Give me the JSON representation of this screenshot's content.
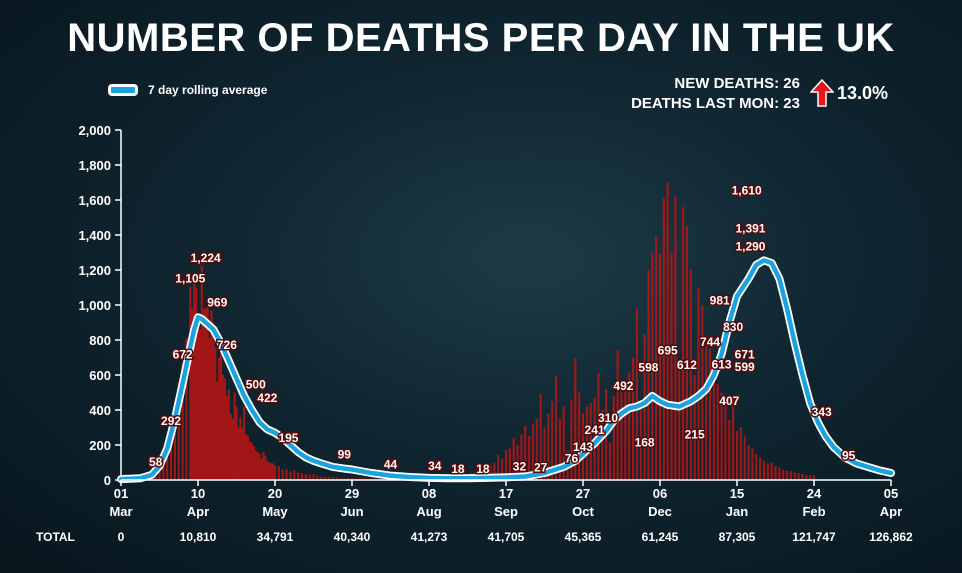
{
  "title": "NUMBER OF DEATHS PER DAY IN THE UK",
  "legend_label": "7 day rolling average",
  "stats": {
    "new_deaths": "NEW DEATHS: 26",
    "deaths_last_mon": "DEATHS LAST MON: 23",
    "change": "13.0%"
  },
  "colors": {
    "bars": "#b31515",
    "line": "#1aa3e0",
    "line_outline": "#ffffff"
  },
  "chart_data": {
    "type": "bar",
    "title": "NUMBER OF DEATHS PER DAY IN THE UK",
    "ylim": [
      0,
      2000
    ],
    "yticks": [
      0,
      200,
      400,
      600,
      800,
      1000,
      1200,
      1400,
      1600,
      1800,
      2000
    ],
    "ytick_labels": [
      "0",
      "200",
      "400",
      "600",
      "800",
      "1,000",
      "1,200",
      "1,400",
      "1,600",
      "1,800",
      "2,000"
    ],
    "x_ticks": [
      {
        "day": 0,
        "date": "01",
        "month": "Mar",
        "total": "0"
      },
      {
        "day": 40,
        "date": "10",
        "month": "Apr",
        "total": "10,810"
      },
      {
        "day": 80,
        "date": "20",
        "month": "May",
        "total": "34,791"
      },
      {
        "day": 120,
        "date": "29",
        "month": "Jun",
        "total": "40,340"
      },
      {
        "day": 160,
        "date": "08",
        "month": "Aug",
        "total": "41,273"
      },
      {
        "day": 200,
        "date": "17",
        "month": "Sep",
        "total": "41,705"
      },
      {
        "day": 240,
        "date": "27",
        "month": "Oct",
        "total": "45,365"
      },
      {
        "day": 280,
        "date": "06",
        "month": "Dec",
        "total": "61,245"
      },
      {
        "day": 320,
        "date": "15",
        "month": "Jan",
        "total": "87,305"
      },
      {
        "day": 360,
        "date": "24",
        "month": "Feb",
        "total": "121,747"
      },
      {
        "day": 400,
        "date": "05",
        "month": "Apr",
        "total": "126,862"
      }
    ],
    "total_label": "TOTAL",
    "rolling_average": {
      "name": "7 day rolling average",
      "points": [
        [
          0,
          5
        ],
        [
          10,
          10
        ],
        [
          16,
          30
        ],
        [
          20,
          80
        ],
        [
          24,
          180
        ],
        [
          28,
          350
        ],
        [
          32,
          550
        ],
        [
          36,
          760
        ],
        [
          38,
          860
        ],
        [
          40,
          930
        ],
        [
          42,
          920
        ],
        [
          44,
          900
        ],
        [
          48,
          860
        ],
        [
          52,
          780
        ],
        [
          56,
          680
        ],
        [
          60,
          580
        ],
        [
          64,
          480
        ],
        [
          68,
          400
        ],
        [
          72,
          330
        ],
        [
          76,
          290
        ],
        [
          80,
          270
        ],
        [
          84,
          240
        ],
        [
          88,
          200
        ],
        [
          92,
          160
        ],
        [
          96,
          130
        ],
        [
          100,
          110
        ],
        [
          104,
          95
        ],
        [
          110,
          75
        ],
        [
          116,
          65
        ],
        [
          120,
          60
        ],
        [
          130,
          40
        ],
        [
          140,
          25
        ],
        [
          150,
          17
        ],
        [
          160,
          12
        ],
        [
          170,
          10
        ],
        [
          180,
          10
        ],
        [
          190,
          12
        ],
        [
          200,
          15
        ],
        [
          210,
          20
        ],
        [
          220,
          40
        ],
        [
          230,
          75
        ],
        [
          236,
          110
        ],
        [
          240,
          150
        ],
        [
          246,
          210
        ],
        [
          252,
          280
        ],
        [
          256,
          340
        ],
        [
          260,
          380
        ],
        [
          264,
          410
        ],
        [
          268,
          420
        ],
        [
          272,
          440
        ],
        [
          276,
          480
        ],
        [
          280,
          450
        ],
        [
          284,
          430
        ],
        [
          290,
          420
        ],
        [
          296,
          450
        ],
        [
          300,
          480
        ],
        [
          304,
          520
        ],
        [
          308,
          600
        ],
        [
          312,
          720
        ],
        [
          316,
          900
        ],
        [
          320,
          1050
        ],
        [
          326,
          1150
        ],
        [
          330,
          1230
        ],
        [
          334,
          1255
        ],
        [
          338,
          1240
        ],
        [
          342,
          1150
        ],
        [
          346,
          980
        ],
        [
          350,
          780
        ],
        [
          354,
          600
        ],
        [
          358,
          440
        ],
        [
          362,
          330
        ],
        [
          366,
          250
        ],
        [
          370,
          190
        ],
        [
          376,
          130
        ],
        [
          382,
          95
        ],
        [
          388,
          75
        ],
        [
          394,
          55
        ],
        [
          400,
          40
        ]
      ]
    },
    "daily_deaths": [
      [
        0,
        1
      ],
      [
        2,
        1
      ],
      [
        4,
        2
      ],
      [
        6,
        3
      ],
      [
        8,
        4
      ],
      [
        10,
        6
      ],
      [
        12,
        10
      ],
      [
        14,
        16
      ],
      [
        16,
        25
      ],
      [
        18,
        58
      ],
      [
        20,
        65
      ],
      [
        22,
        100
      ],
      [
        24,
        180
      ],
      [
        26,
        292
      ],
      [
        28,
        450
      ],
      [
        30,
        560
      ],
      [
        32,
        672
      ],
      [
        34,
        810
      ],
      [
        36,
        1105
      ],
      [
        37,
        980
      ],
      [
        38,
        1150
      ],
      [
        39,
        1100
      ],
      [
        40,
        880
      ],
      [
        41,
        860
      ],
      [
        42,
        1224
      ],
      [
        43,
        980
      ],
      [
        44,
        980
      ],
      [
        45,
        1040
      ],
      [
        46,
        810
      ],
      [
        47,
        969
      ],
      [
        48,
        900
      ],
      [
        49,
        760
      ],
      [
        50,
        560
      ],
      [
        51,
        700
      ],
      [
        52,
        726
      ],
      [
        53,
        600
      ],
      [
        54,
        580
      ],
      [
        55,
        480
      ],
      [
        56,
        520
      ],
      [
        57,
        380
      ],
      [
        58,
        350
      ],
      [
        59,
        500
      ],
      [
        60,
        420
      ],
      [
        61,
        300
      ],
      [
        62,
        360
      ],
      [
        63,
        300
      ],
      [
        64,
        422
      ],
      [
        65,
        260
      ],
      [
        66,
        250
      ],
      [
        67,
        220
      ],
      [
        68,
        210
      ],
      [
        69,
        195
      ],
      [
        70,
        170
      ],
      [
        71,
        160
      ],
      [
        72,
        150
      ],
      [
        73,
        120
      ],
      [
        74,
        160
      ],
      [
        75,
        140
      ],
      [
        76,
        110
      ],
      [
        77,
        100
      ],
      [
        78,
        99
      ],
      [
        79,
        95
      ],
      [
        80,
        85
      ],
      [
        82,
        80
      ],
      [
        84,
        60
      ],
      [
        86,
        60
      ],
      [
        88,
        50
      ],
      [
        90,
        55
      ],
      [
        92,
        44
      ],
      [
        94,
        40
      ],
      [
        96,
        35
      ],
      [
        98,
        30
      ],
      [
        100,
        34
      ],
      [
        102,
        25
      ],
      [
        104,
        18
      ],
      [
        106,
        18
      ],
      [
        108,
        15
      ],
      [
        110,
        18
      ],
      [
        112,
        14
      ],
      [
        114,
        12
      ],
      [
        116,
        10
      ],
      [
        118,
        12
      ],
      [
        120,
        10
      ],
      [
        122,
        8
      ],
      [
        124,
        10
      ],
      [
        126,
        9
      ],
      [
        128,
        8
      ],
      [
        130,
        7
      ],
      [
        132,
        8
      ],
      [
        134,
        9
      ],
      [
        136,
        10
      ],
      [
        138,
        12
      ],
      [
        140,
        11
      ],
      [
        142,
        12
      ],
      [
        144,
        14
      ],
      [
        146,
        13
      ],
      [
        148,
        15
      ],
      [
        150,
        12
      ],
      [
        152,
        16
      ],
      [
        154,
        14
      ],
      [
        156,
        18
      ],
      [
        158,
        16
      ],
      [
        160,
        15
      ],
      [
        162,
        18
      ],
      [
        164,
        20
      ],
      [
        166,
        22
      ],
      [
        168,
        25
      ],
      [
        170,
        28
      ],
      [
        172,
        30
      ],
      [
        174,
        32
      ],
      [
        176,
        27
      ],
      [
        178,
        35
      ],
      [
        180,
        30
      ],
      [
        182,
        40
      ],
      [
        184,
        45
      ],
      [
        186,
        50
      ],
      [
        188,
        60
      ],
      [
        190,
        76
      ],
      [
        192,
        80
      ],
      [
        194,
        100
      ],
      [
        196,
        143
      ],
      [
        198,
        120
      ],
      [
        200,
        170
      ],
      [
        202,
        180
      ],
      [
        204,
        241
      ],
      [
        206,
        200
      ],
      [
        208,
        260
      ],
      [
        210,
        310
      ],
      [
        212,
        250
      ],
      [
        214,
        320
      ],
      [
        216,
        350
      ],
      [
        218,
        492
      ],
      [
        220,
        300
      ],
      [
        222,
        380
      ],
      [
        224,
        450
      ],
      [
        226,
        598
      ],
      [
        228,
        350
      ],
      [
        230,
        420
      ],
      [
        232,
        168
      ],
      [
        234,
        460
      ],
      [
        236,
        695
      ],
      [
        238,
        500
      ],
      [
        240,
        380
      ],
      [
        242,
        420
      ],
      [
        244,
        440
      ],
      [
        246,
        470
      ],
      [
        248,
        612
      ],
      [
        250,
        400
      ],
      [
        252,
        520
      ],
      [
        254,
        215
      ],
      [
        256,
        480
      ],
      [
        258,
        744
      ],
      [
        260,
        500
      ],
      [
        262,
        560
      ],
      [
        264,
        613
      ],
      [
        266,
        700
      ],
      [
        268,
        981
      ],
      [
        270,
        407
      ],
      [
        272,
        830
      ],
      [
        274,
        1200
      ],
      [
        276,
        1300
      ],
      [
        278,
        1391
      ],
      [
        280,
        1290
      ],
      [
        282,
        1610
      ],
      [
        284,
        1700
      ],
      [
        286,
        1300
      ],
      [
        288,
        1620
      ],
      [
        290,
        671
      ],
      [
        292,
        1560
      ],
      [
        294,
        1450
      ],
      [
        296,
        1200
      ],
      [
        298,
        599
      ],
      [
        300,
        1100
      ],
      [
        302,
        1000
      ],
      [
        304,
        800
      ],
      [
        306,
        750
      ],
      [
        308,
        600
      ],
      [
        310,
        550
      ],
      [
        312,
        500
      ],
      [
        314,
        480
      ],
      [
        316,
        343
      ],
      [
        318,
        450
      ],
      [
        320,
        280
      ],
      [
        322,
        300
      ],
      [
        324,
        250
      ],
      [
        326,
        200
      ],
      [
        328,
        180
      ],
      [
        330,
        150
      ],
      [
        332,
        130
      ],
      [
        334,
        110
      ],
      [
        336,
        95
      ],
      [
        338,
        100
      ],
      [
        340,
        80
      ],
      [
        342,
        70
      ],
      [
        344,
        60
      ],
      [
        346,
        55
      ],
      [
        348,
        50
      ],
      [
        350,
        45
      ],
      [
        352,
        40
      ],
      [
        354,
        35
      ],
      [
        356,
        30
      ],
      [
        358,
        28
      ],
      [
        360,
        26
      ]
    ],
    "data_labels": [
      {
        "day": 18,
        "value": 58,
        "text": "58"
      },
      {
        "day": 26,
        "value": 292,
        "text": "292"
      },
      {
        "day": 32,
        "value": 672,
        "text": "672"
      },
      {
        "day": 36,
        "value": 1105,
        "text": "1,105"
      },
      {
        "day": 44,
        "value": 1224,
        "text": "1,224"
      },
      {
        "day": 50,
        "value": 969,
        "text": "969"
      },
      {
        "day": 55,
        "value": 726,
        "text": "726"
      },
      {
        "day": 70,
        "value": 500,
        "text": "500"
      },
      {
        "day": 76,
        "value": 422,
        "text": "422"
      },
      {
        "day": 87,
        "value": 195,
        "text": "195"
      },
      {
        "day": 116,
        "value": 99,
        "text": "99"
      },
      {
        "day": 140,
        "value": 44,
        "text": "44"
      },
      {
        "day": 163,
        "value": 34,
        "text": "34"
      },
      {
        "day": 175,
        "value": 18,
        "text": "18"
      },
      {
        "day": 188,
        "value": 18,
        "text": "18"
      },
      {
        "day": 207,
        "value": 32,
        "text": "32"
      },
      {
        "day": 218,
        "value": 27,
        "text": "27"
      },
      {
        "day": 234,
        "value": 76,
        "text": "76"
      },
      {
        "day": 240,
        "value": 143,
        "text": "143"
      },
      {
        "day": 246,
        "value": 241,
        "text": "241"
      },
      {
        "day": 253,
        "value": 310,
        "text": "310"
      },
      {
        "day": 261,
        "value": 492,
        "text": "492"
      },
      {
        "day": 274,
        "value": 598,
        "text": "598"
      },
      {
        "day": 272,
        "value": 168,
        "text": "168"
      },
      {
        "day": 284,
        "value": 695,
        "text": "695"
      },
      {
        "day": 294,
        "value": 612,
        "text": "612"
      },
      {
        "day": 298,
        "value": 215,
        "text": "215"
      },
      {
        "day": 306,
        "value": 744,
        "text": "744"
      },
      {
        "day": 312,
        "value": 613,
        "text": "613"
      },
      {
        "day": 311,
        "value": 981,
        "text": "981"
      },
      {
        "day": 316,
        "value": 407,
        "text": "407"
      },
      {
        "day": 318,
        "value": 830,
        "text": "830"
      },
      {
        "day": 324,
        "value": 671,
        "text": "671"
      },
      {
        "day": 324,
        "value": 599,
        "text": "599"
      },
      {
        "day": 325,
        "value": 1610,
        "text": "1,610"
      },
      {
        "day": 327,
        "value": 1391,
        "text": "1,391"
      },
      {
        "day": 327,
        "value": 1290,
        "text": "1,290"
      },
      {
        "day": 364,
        "value": 343,
        "text": "343"
      },
      {
        "day": 378,
        "value": 95,
        "text": "95"
      }
    ]
  }
}
